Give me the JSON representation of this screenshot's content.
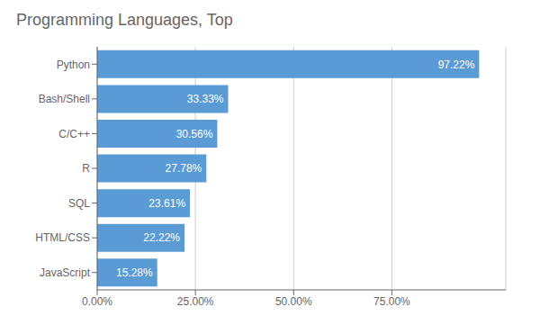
{
  "chart_data": {
    "type": "bar",
    "title": "Programming Languages, Top",
    "orientation": "horizontal",
    "categories": [
      "Python",
      "Bash/Shell",
      "C/C++",
      "R",
      "SQL",
      "HTML/CSS",
      "JavaScript"
    ],
    "values": [
      97.22,
      33.33,
      30.56,
      27.78,
      23.61,
      22.22,
      15.28
    ],
    "value_labels": [
      "97.22%",
      "33.33%",
      "30.56%",
      "27.78%",
      "23.61%",
      "22.22%",
      "15.28%"
    ],
    "data_labels": true,
    "color": "#5b9bd5",
    "xlim": [
      0,
      104
    ],
    "xticks": [
      {
        "value": 0,
        "label": "0.00%"
      },
      {
        "value": 25,
        "label": "25.00%"
      },
      {
        "value": 50,
        "label": "50.00%"
      },
      {
        "value": 75,
        "label": "75.00%"
      }
    ],
    "grid": true
  }
}
